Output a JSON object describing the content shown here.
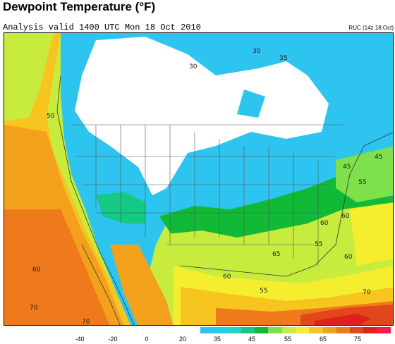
{
  "header": {
    "title": "Dewpoint Temperature (°F)",
    "subtitle": "Analysis valid 1400 UTC Mon 18 Oct 2010",
    "model_tag": "RUC (14z 18 Oct)"
  },
  "legend": {
    "labels": [
      "-40",
      "-20",
      "0",
      "20",
      "35",
      "45",
      "55",
      "65",
      "75"
    ],
    "colors": [
      "#2ec4f0",
      "#22d0ec",
      "#1fd6c2",
      "#13c983",
      "#10b936",
      "#7ee04a",
      "#c7ec3d",
      "#f5ee2f",
      "#f8c41f",
      "#f3a11d",
      "#ee7a1c",
      "#e2461b",
      "#e0201d",
      "#ff1a4a"
    ]
  },
  "map": {
    "contour_labels": [
      "30",
      "35",
      "30",
      "50",
      "45",
      "55",
      "45",
      "60",
      "55",
      "60",
      "60",
      "55",
      "70",
      "60",
      "65",
      "70",
      "60",
      "70"
    ]
  }
}
